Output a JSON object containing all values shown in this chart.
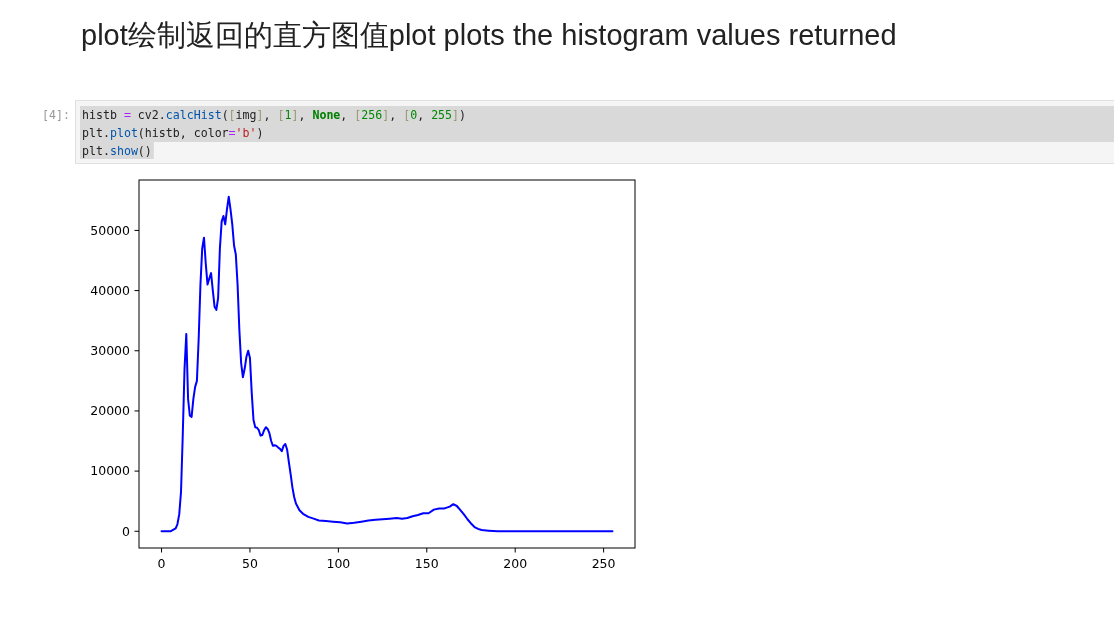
{
  "chart_data": {
    "type": "line",
    "title": "plot绘制返回的直方图值plot plots the histogram values returned",
    "annotations": [
      "[4]:",
      "histb = cv2.calcHist([img], [1], None, [256], [0, 255])",
      "plt.plot(histb, color='b')",
      "plt.show()"
    ],
    "x": [
      0,
      5,
      8,
      9,
      10,
      11,
      12,
      13,
      14,
      15,
      16,
      17,
      18,
      19,
      20,
      21,
      22,
      23,
      24,
      25,
      26,
      27,
      28,
      29,
      30,
      31,
      32,
      33,
      34,
      35,
      36,
      37,
      38,
      39,
      40,
      41,
      42,
      43,
      44,
      45,
      46,
      47,
      48,
      49,
      50,
      51,
      52,
      53,
      54,
      55,
      56,
      57,
      58,
      59,
      60,
      61,
      62,
      63,
      64,
      65,
      66,
      67,
      68,
      69,
      70,
      71,
      72,
      73,
      74,
      75,
      76,
      78,
      80,
      83,
      86,
      89,
      93,
      97,
      101,
      105,
      109,
      113,
      117,
      121,
      125,
      129,
      133,
      136,
      139,
      142,
      145,
      148,
      151,
      154,
      157,
      160,
      163,
      165,
      167,
      169,
      171,
      173,
      175,
      177,
      179,
      181,
      185,
      190,
      200,
      215,
      235,
      255
    ],
    "series": [
      {
        "color": "#0000ff",
        "values": [
          0,
          0,
          500,
          1200,
          2800,
          6500,
          16000,
          27000,
          32800,
          22000,
          19200,
          19000,
          22000,
          24000,
          25000,
          32000,
          41000,
          47000,
          48800,
          44500,
          41000,
          42000,
          42900,
          40000,
          37300,
          36800,
          38800,
          47000,
          51500,
          52400,
          51000,
          53500,
          55600,
          53500,
          51000,
          47500,
          46000,
          41000,
          33500,
          28000,
          25600,
          27000,
          29000,
          30000,
          28800,
          23000,
          18500,
          17300,
          17200,
          16800,
          15900,
          16000,
          16800,
          17300,
          17000,
          16300,
          15000,
          14200,
          14300,
          14200,
          13900,
          13700,
          13300,
          14200,
          14500,
          13600,
          11500,
          9500,
          7300,
          5700,
          4600,
          3500,
          2900,
          2400,
          2100,
          1800,
          1700,
          1600,
          1500,
          1300,
          1400,
          1600,
          1800,
          1900,
          2000,
          2100,
          2200,
          2100,
          2200,
          2500,
          2700,
          3000,
          3000,
          3600,
          3800,
          3800,
          4100,
          4500,
          4200,
          3500,
          2800,
          2000,
          1300,
          700,
          400,
          200,
          100,
          0,
          0,
          0,
          0,
          0
        ]
      }
    ],
    "xlim": [
      -12.75,
      267.75
    ],
    "ylim": [
      -2780,
      58380
    ],
    "xticks": [
      0,
      50,
      100,
      150,
      200,
      250
    ],
    "yticks": [
      0,
      10000,
      20000,
      30000,
      40000,
      50000
    ],
    "line_style": "solid"
  }
}
